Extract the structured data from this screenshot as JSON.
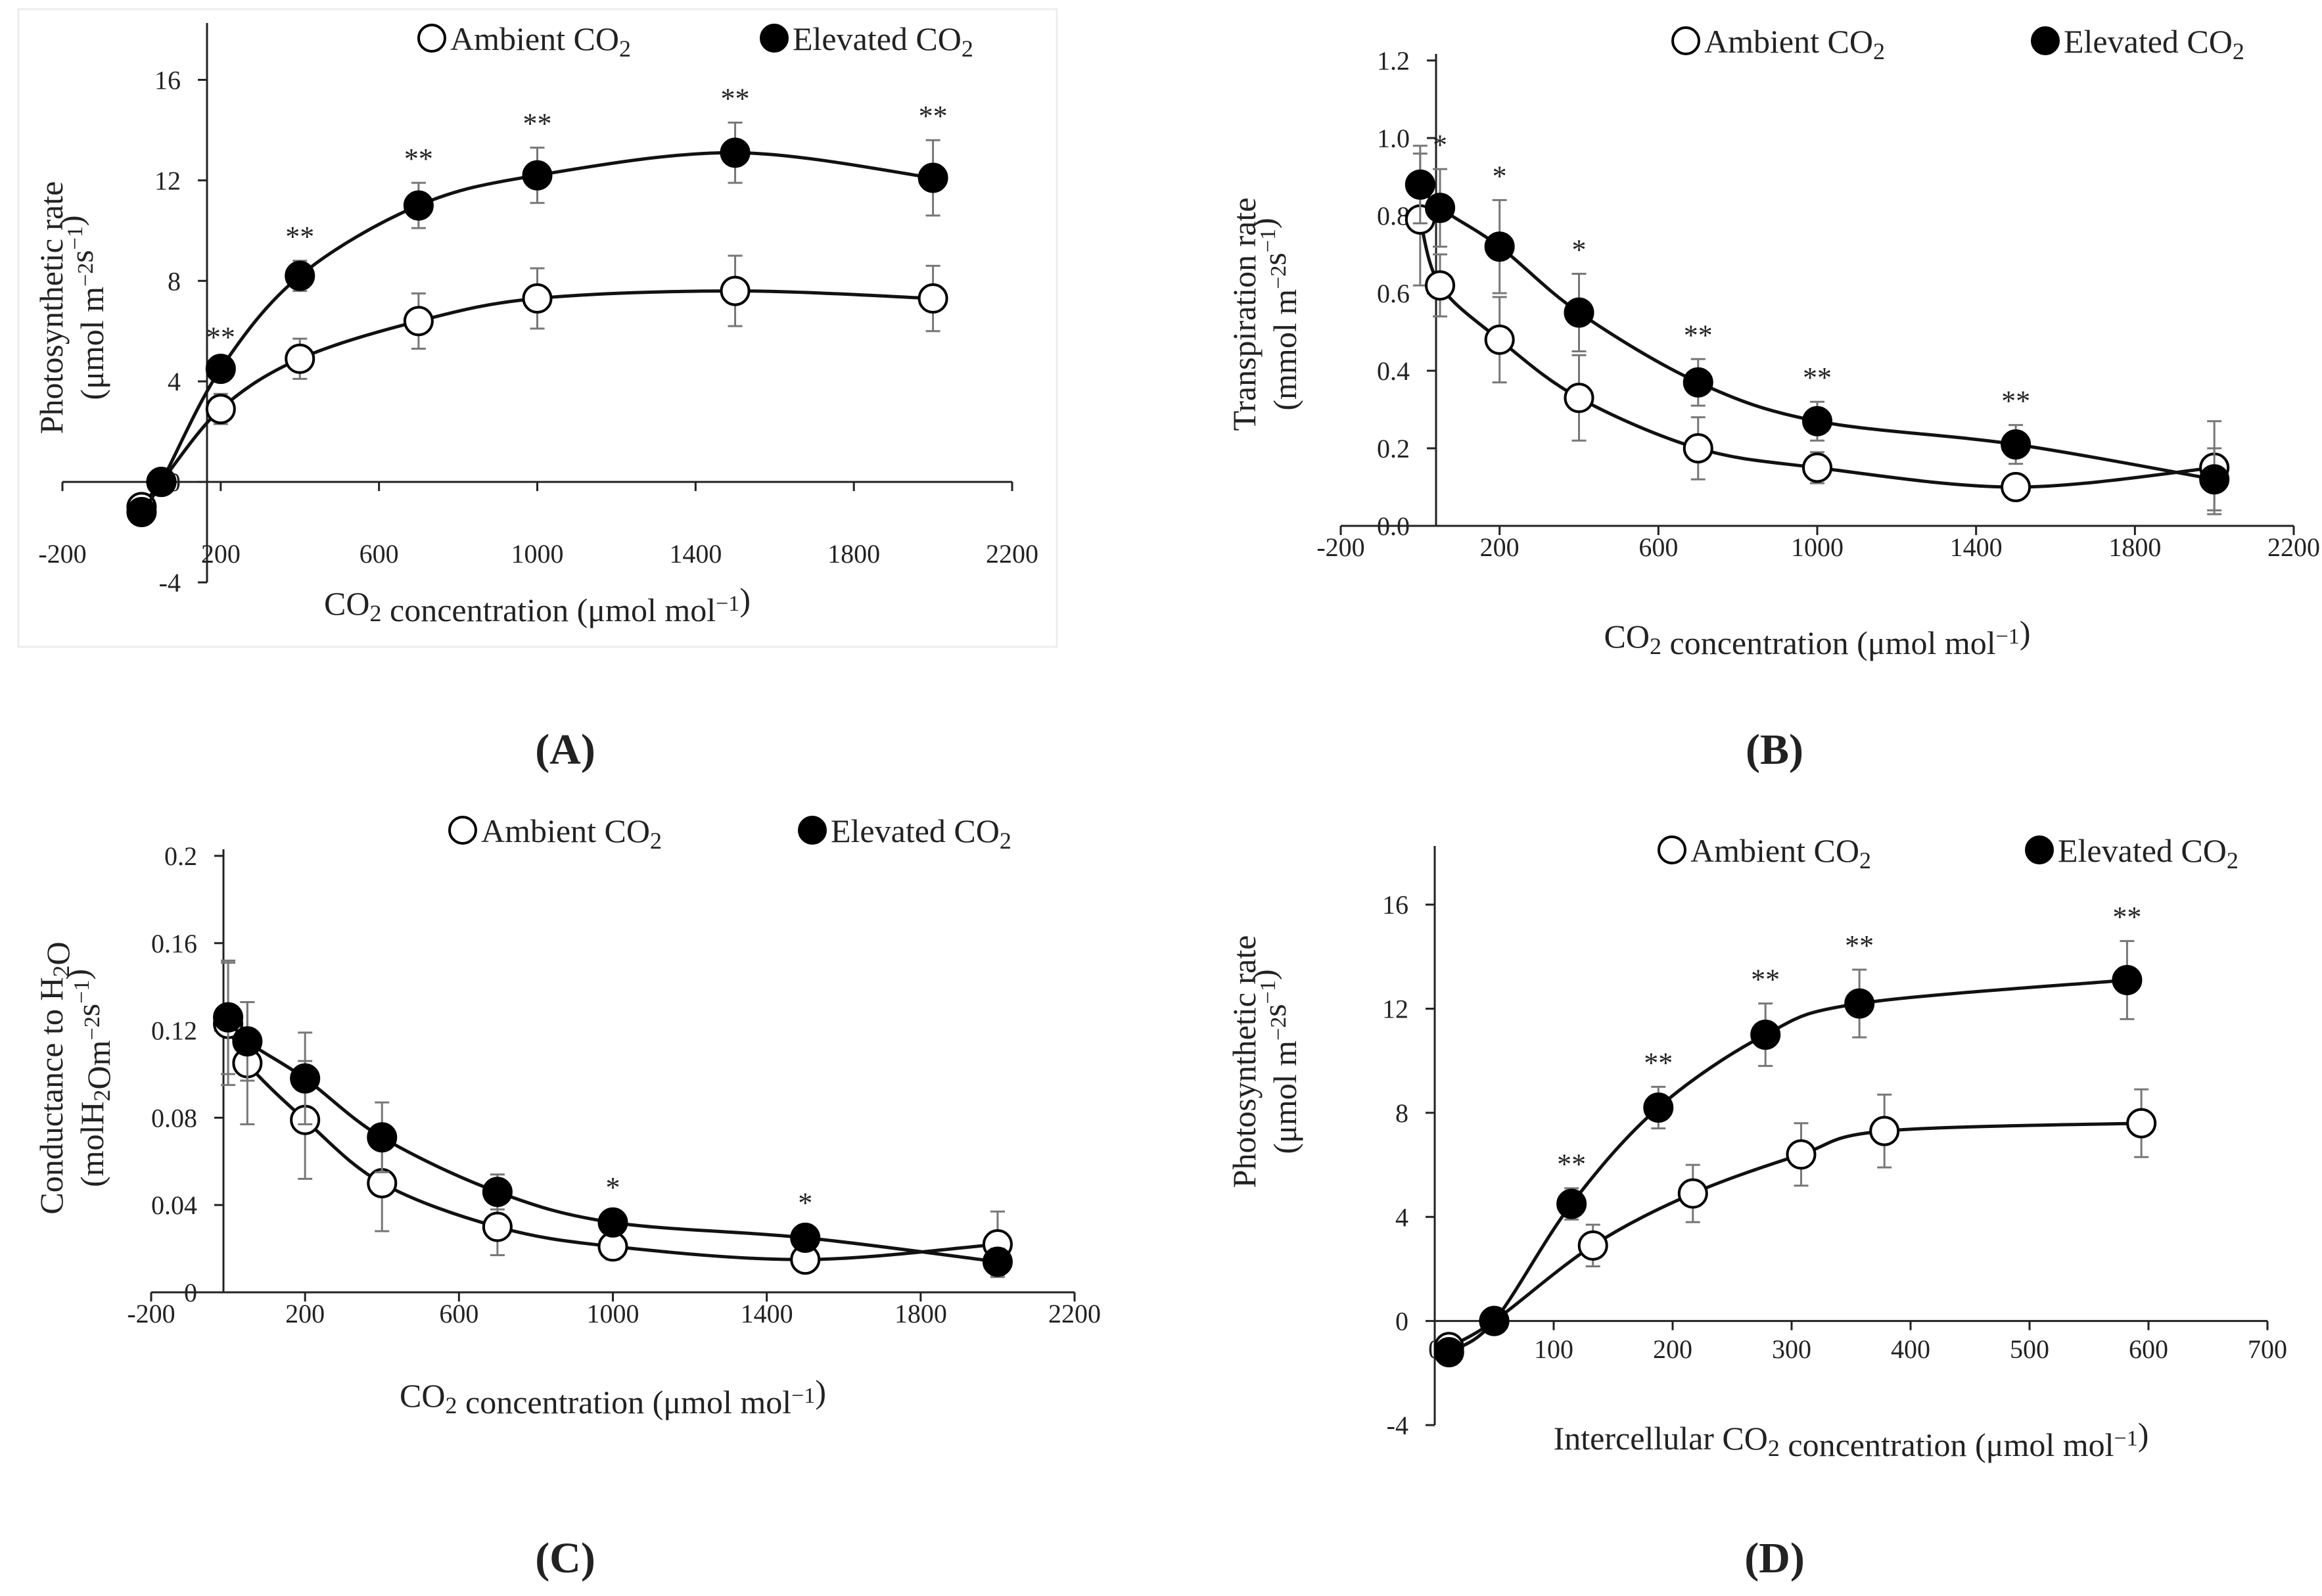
{
  "figure": {
    "panel_labels": [
      "(A)",
      "(B)",
      "(C)",
      "(D)"
    ]
  },
  "chart_data": [
    {
      "panel": "A",
      "type": "line",
      "xlabel": "CO₂ concentration (μmol mol⁻¹)",
      "ylabel_lines": [
        "Photosynthetic rate",
        "(μmol m⁻²s⁻¹)"
      ],
      "xlim": [
        -200,
        2200
      ],
      "ylim": [
        -4,
        18
      ],
      "xticks": [
        -200,
        200,
        600,
        1000,
        1400,
        1800,
        2200
      ],
      "yticks": [
        -4,
        0,
        4,
        8,
        12,
        16
      ],
      "yformat": "int",
      "legend": [
        "Ambient CO₂",
        "Elevated CO₂"
      ],
      "series": [
        {
          "name": "Ambient CO₂",
          "marker": "open-circle",
          "x": [
            0,
            50,
            200,
            400,
            700,
            1000,
            1500,
            2000
          ],
          "y": [
            -1.0,
            0.0,
            2.9,
            4.9,
            6.4,
            7.3,
            7.6,
            7.3
          ],
          "err": [
            0.3,
            0.3,
            0.6,
            0.8,
            1.1,
            1.2,
            1.4,
            1.3
          ]
        },
        {
          "name": "Elevated CO₂",
          "marker": "filled-circle",
          "x": [
            0,
            50,
            200,
            400,
            700,
            1000,
            1500,
            2000
          ],
          "y": [
            -1.2,
            0.0,
            4.5,
            8.2,
            11.0,
            12.2,
            13.1,
            12.1
          ],
          "err": [
            0.3,
            0.3,
            0.3,
            0.6,
            0.9,
            1.1,
            1.2,
            1.5
          ]
        }
      ],
      "annotations": [
        {
          "x": 200,
          "text": "**"
        },
        {
          "x": 400,
          "text": "**"
        },
        {
          "x": 700,
          "text": "**"
        },
        {
          "x": 1000,
          "text": "**"
        },
        {
          "x": 1500,
          "text": "**"
        },
        {
          "x": 2000,
          "text": "**"
        }
      ]
    },
    {
      "panel": "B",
      "type": "line",
      "xlabel": "CO₂ concentration (μmol mol⁻¹)",
      "ylabel_lines": [
        "Transpiration rate",
        "(mmol m⁻²s⁻¹)"
      ],
      "xlim": [
        -200,
        2200
      ],
      "ylim": [
        0,
        1.2
      ],
      "xticks": [
        -200,
        200,
        600,
        1000,
        1400,
        1800,
        2200
      ],
      "yticks": [
        0.0,
        0.2,
        0.4,
        0.6,
        0.8,
        1.0,
        1.2
      ],
      "yformat": "1",
      "legend": [
        "Ambient CO₂",
        "Elevated CO₂"
      ],
      "series": [
        {
          "name": "Ambient CO₂",
          "marker": "open-circle",
          "x": [
            0,
            50,
            200,
            400,
            700,
            1000,
            1500,
            2000
          ],
          "y": [
            0.79,
            0.62,
            0.48,
            0.33,
            0.2,
            0.15,
            0.1,
            0.15
          ],
          "err": [
            0.17,
            0.08,
            0.11,
            0.11,
            0.08,
            0.04,
            0.02,
            0.12
          ]
        },
        {
          "name": "Elevated CO₂",
          "marker": "filled-circle",
          "x": [
            0,
            50,
            200,
            400,
            700,
            1000,
            1500,
            2000
          ],
          "y": [
            0.88,
            0.82,
            0.72,
            0.55,
            0.37,
            0.27,
            0.21,
            0.12
          ],
          "err": [
            0.1,
            0.1,
            0.12,
            0.1,
            0.06,
            0.05,
            0.05,
            0.08
          ]
        }
      ],
      "annotations": [
        {
          "x": 50,
          "text": "*"
        },
        {
          "x": 200,
          "text": "*"
        },
        {
          "x": 400,
          "text": "*"
        },
        {
          "x": 700,
          "text": "**"
        },
        {
          "x": 1000,
          "text": "**"
        },
        {
          "x": 1500,
          "text": "**"
        }
      ]
    },
    {
      "panel": "C",
      "type": "line",
      "xlabel": "CO₂ concentration (μmol mol⁻¹)",
      "ylabel_lines": [
        "Conductance to H₂O",
        "(molH₂Om⁻²s⁻¹)"
      ],
      "xlim": [
        -200,
        2200
      ],
      "ylim": [
        0,
        0.2
      ],
      "xticks": [
        -200,
        200,
        600,
        1000,
        1400,
        1800,
        2200
      ],
      "yticks": [
        0,
        0.04,
        0.08,
        0.12,
        0.16,
        0.2
      ],
      "yformat": "plain",
      "legend": [
        "Ambient CO₂",
        "Elevated CO₂"
      ],
      "series": [
        {
          "name": "Ambient CO₂",
          "marker": "open-circle",
          "x": [
            0,
            50,
            200,
            400,
            700,
            1000,
            1500,
            2000
          ],
          "y": [
            0.123,
            0.105,
            0.079,
            0.05,
            0.03,
            0.021,
            0.015,
            0.022
          ],
          "err": [
            0.028,
            0.028,
            0.027,
            0.022,
            0.013,
            0.006,
            0.004,
            0.015
          ]
        },
        {
          "name": "Elevated CO₂",
          "marker": "filled-circle",
          "x": [
            0,
            50,
            200,
            400,
            700,
            1000,
            1500,
            2000
          ],
          "y": [
            0.126,
            0.115,
            0.098,
            0.071,
            0.046,
            0.032,
            0.025,
            0.014
          ],
          "err": [
            0.026,
            0.018,
            0.021,
            0.016,
            0.008,
            0.005,
            0.005,
            0.006
          ]
        }
      ],
      "annotations": [
        {
          "x": 1000,
          "text": "*"
        },
        {
          "x": 1500,
          "text": "*"
        }
      ]
    },
    {
      "panel": "D",
      "type": "line",
      "xlabel": "Intercellular CO₂ concentration (μmol mol⁻¹)",
      "ylabel_lines": [
        "Photosynthetic rate",
        "(μmol m⁻²s⁻¹)"
      ],
      "xlim": [
        0,
        700
      ],
      "ylim": [
        -4,
        18
      ],
      "xticks": [
        0,
        100,
        200,
        300,
        400,
        500,
        600,
        700
      ],
      "yticks": [
        -4,
        0,
        4,
        8,
        12,
        16
      ],
      "yformat": "int",
      "legend": [
        "Ambient CO₂",
        "Elevated CO₂"
      ],
      "series": [
        {
          "name": "Ambient CO₂",
          "marker": "open-circle",
          "x": [
            12,
            50,
            133,
            217,
            308,
            378,
            594
          ],
          "y": [
            -1.0,
            0.0,
            2.9,
            4.9,
            6.4,
            7.3,
            7.6
          ],
          "err": [
            0.3,
            0.3,
            0.8,
            1.1,
            1.2,
            1.4,
            1.3
          ]
        },
        {
          "name": "Elevated CO₂",
          "marker": "filled-circle",
          "x": [
            12,
            50,
            115,
            188,
            278,
            357,
            582
          ],
          "y": [
            -1.2,
            0.0,
            4.5,
            8.2,
            11.0,
            12.2,
            13.1
          ],
          "err": [
            0.3,
            0.3,
            0.6,
            0.8,
            1.2,
            1.3,
            1.5
          ]
        }
      ],
      "annotations": [
        {
          "x": 115,
          "text": "**"
        },
        {
          "x": 188,
          "text": "**"
        },
        {
          "x": 278,
          "text": "**"
        },
        {
          "x": 357,
          "text": "**"
        },
        {
          "x": 582,
          "text": "**"
        }
      ]
    }
  ]
}
